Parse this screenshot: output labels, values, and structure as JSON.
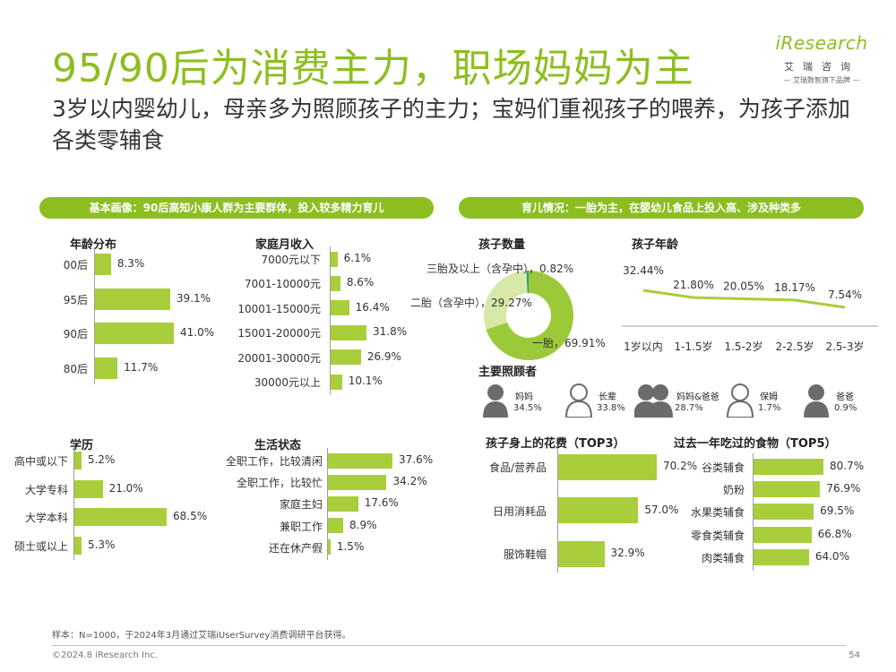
{
  "page": {
    "title": "95/90后为消费主力，职场妈妈为主",
    "subtitle": "3岁以内婴幼儿，母亲多为照顾孩子的主力；宝妈们重视孩子的喂养，为孩子添加各类零辅食",
    "logo": {
      "word": "iResearch",
      "cn": "艾瑞咨询",
      "slogan": "— 艾瑞数智旗下品牌 —"
    },
    "footer_note": "样本：N=1000，于2024年3月通过艾瑞iUserSurvey消费调研平台获得。",
    "copyright": "©2024.8 iResearch Inc.",
    "page_number": "54"
  },
  "colors": {
    "accent": "#8cbe21",
    "bar": "#a8ce3b",
    "pie_main": "#9cc93a",
    "pie_second": "#d8e8a8",
    "pie_third": "#1aa37a",
    "icon": "#6b6b6b"
  },
  "banners": {
    "left": "基本画像：90后高知小康人群为主要群体，投入较多精力育儿",
    "right": "育儿情况：一胎为主，在婴幼儿食品上投入高、涉及种类多"
  },
  "chart_data": [
    {
      "id": "age",
      "type": "bar",
      "orientation": "horizontal",
      "title": "年龄分布",
      "categories": [
        "00后",
        "95后",
        "90后",
        "80后"
      ],
      "values": [
        8.3,
        39.1,
        41.0,
        11.7
      ],
      "labels": [
        "8.3%",
        "39.1%",
        "41.0%",
        "11.7%"
      ],
      "xlim": [
        0,
        41.0
      ]
    },
    {
      "id": "income",
      "type": "bar",
      "orientation": "horizontal",
      "title": "家庭月收入",
      "categories": [
        "7000元以下",
        "7001-10000元",
        "10001-15000元",
        "15001-20000元",
        "20001-30000元",
        "30000元以上"
      ],
      "values": [
        6.1,
        8.6,
        16.4,
        31.8,
        26.9,
        10.1
      ],
      "labels": [
        "6.1%",
        "8.6%",
        "16.4%",
        "31.8%",
        "26.9%",
        "10.1%"
      ],
      "xlim": [
        0,
        31.8
      ]
    },
    {
      "id": "education",
      "type": "bar",
      "orientation": "horizontal",
      "title": "学历",
      "categories": [
        "高中或以下",
        "大学专科",
        "大学本科",
        "硕士或以上"
      ],
      "values": [
        5.2,
        21.0,
        68.5,
        5.3
      ],
      "labels": [
        "5.2%",
        "21.0%",
        "68.5%",
        "5.3%"
      ],
      "xlim": [
        0,
        68.5
      ]
    },
    {
      "id": "life",
      "type": "bar",
      "orientation": "horizontal",
      "title": "生活状态",
      "categories": [
        "全职工作，比较清闲",
        "全职工作，比较忙",
        "家庭主妇",
        "兼职工作",
        "还在休产假"
      ],
      "values": [
        37.6,
        34.2,
        17.6,
        8.9,
        1.5
      ],
      "labels": [
        "37.6%",
        "34.2%",
        "17.6%",
        "8.9%",
        "1.5%"
      ],
      "xlim": [
        0,
        37.6
      ]
    },
    {
      "id": "kids",
      "type": "pie",
      "title": "孩子数量",
      "categories": [
        "一胎",
        "二胎（含孕中）",
        "三胎及以上（含孕中）"
      ],
      "values": [
        69.91,
        29.27,
        0.82
      ],
      "labels": [
        "一胎，69.91%",
        "二胎（含孕中），29.27%",
        "三胎及以上（含孕中），0.82%"
      ]
    },
    {
      "id": "kidage",
      "type": "line",
      "title": "孩子年龄",
      "categories": [
        "1岁以内",
        "1-1.5岁",
        "1.5-2岁",
        "2-2.5岁",
        "2.5-3岁"
      ],
      "values": [
        32.44,
        21.8,
        20.05,
        18.17,
        7.54
      ],
      "labels": [
        "32.44%",
        "21.80%",
        "20.05%",
        "18.17%",
        "7.54%"
      ]
    },
    {
      "id": "caregiver",
      "type": "table",
      "title": "主要照顾者",
      "items": [
        {
          "label": "妈妈",
          "value": 34.5,
          "pct": "34.5%",
          "icon": "mother-icon"
        },
        {
          "label": "长辈",
          "value": 33.8,
          "pct": "33.8%",
          "icon": "elder-icon"
        },
        {
          "label": "妈妈&爸爸",
          "value": 28.7,
          "pct": "28.7%",
          "icon": "parents-icon"
        },
        {
          "label": "保姆",
          "value": 1.7,
          "pct": "1.7%",
          "icon": "nanny-icon"
        },
        {
          "label": "爸爸",
          "value": 0.9,
          "pct": "0.9%",
          "icon": "father-icon"
        }
      ]
    },
    {
      "id": "spend",
      "type": "bar",
      "orientation": "horizontal",
      "title": "孩子身上的花费（TOP3）",
      "categories": [
        "食品/营养品",
        "日用消耗品",
        "服饰鞋帽"
      ],
      "values": [
        70.2,
        57.0,
        32.9
      ],
      "labels": [
        "70.2%",
        "57.0%",
        "32.9%"
      ],
      "xlim": [
        0,
        70.2
      ]
    },
    {
      "id": "food",
      "type": "bar",
      "orientation": "horizontal",
      "title": "过去一年吃过的食物（TOP5）",
      "categories": [
        "谷类辅食",
        "奶粉",
        "水果类辅食",
        "零食类辅食",
        "肉类辅食"
      ],
      "values": [
        80.7,
        76.9,
        69.5,
        66.8,
        64.0
      ],
      "labels": [
        "80.7%",
        "76.9%",
        "69.5%",
        "66.8%",
        "64.0%"
      ],
      "xlim": [
        0,
        80.7
      ]
    }
  ]
}
